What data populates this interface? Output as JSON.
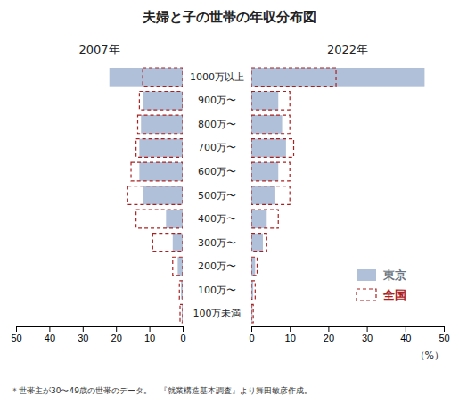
{
  "title": "夫婦と子の世帯の年収分布図",
  "annotations": [
    "＊世帯主が30〜49歳の世帯のデータ。　『就業構造基本調査』より舞田敏彦作成。"
  ],
  "chart_data": [
    {
      "type": "bar",
      "orientation": "horizontal",
      "title": "2007年",
      "categories": [
        "1000万以上",
        "900万〜",
        "800万〜",
        "700万〜",
        "600万〜",
        "500万〜",
        "400万〜",
        "300万〜",
        "200万〜",
        "100万〜",
        "100万未満"
      ],
      "series": [
        {
          "name": "東京",
          "color": "#b0c0d8",
          "values": [
            22.0,
            12.0,
            12.5,
            13.0,
            13.0,
            12.0,
            5.0,
            3.0,
            1.5,
            0.5,
            0.3
          ]
        },
        {
          "name": "全国",
          "color": "#aa2020",
          "line_style": "dashed",
          "values": [
            12.0,
            13.0,
            13.5,
            14.0,
            15.5,
            16.5,
            14.0,
            9.0,
            3.0,
            1.0,
            0.8
          ]
        }
      ],
      "xlim": [
        50,
        0
      ],
      "xticks": [
        0,
        10,
        20,
        30,
        40,
        50
      ]
    },
    {
      "type": "bar",
      "orientation": "horizontal",
      "title": "2022年",
      "xlabel": "（%）",
      "categories": [
        "1000万以上",
        "900万〜",
        "800万〜",
        "700万〜",
        "600万〜",
        "500万〜",
        "400万〜",
        "300万〜",
        "200万〜",
        "100万〜",
        "100万未満"
      ],
      "series": [
        {
          "name": "東京",
          "color": "#b0c0d8",
          "values": [
            45.0,
            7.0,
            8.0,
            9.0,
            7.0,
            6.0,
            4.0,
            3.0,
            1.0,
            0.5,
            0.3
          ]
        },
        {
          "name": "全国",
          "color": "#aa2020",
          "line_style": "dashed",
          "values": [
            22.0,
            10.0,
            10.0,
            11.0,
            10.0,
            10.0,
            7.0,
            4.0,
            1.5,
            1.0,
            0.5
          ]
        }
      ],
      "xlim": [
        0,
        50
      ],
      "xticks": [
        0,
        10,
        20,
        30,
        40,
        50
      ],
      "legend": "lower right"
    }
  ]
}
